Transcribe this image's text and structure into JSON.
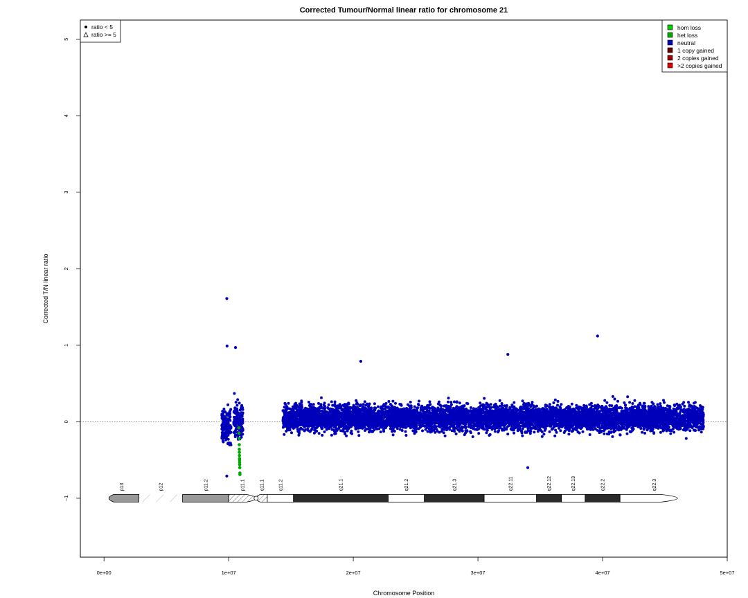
{
  "chart_data": {
    "type": "scatter",
    "title": "Corrected Tumour/Normal linear ratio for chromosome  21",
    "xlabel": "Chromosome Position",
    "ylabel": "Corrected T/N linear ratio",
    "xlim": [
      -1900000,
      50000000
    ],
    "ylim": [
      -1.77,
      5.25
    ],
    "x_ticks": [
      0,
      10000000,
      20000000,
      30000000,
      40000000,
      50000000
    ],
    "x_tick_labels": [
      "0e+00",
      "1e+07",
      "2e+07",
      "3e+07",
      "4e+07",
      "5e+07"
    ],
    "y_ticks": [
      -1,
      0,
      1,
      2,
      3,
      4,
      5
    ],
    "y_tick_labels": [
      "−1",
      "0",
      "1",
      "2",
      "3",
      "4",
      "5"
    ],
    "reference_line_y": 0,
    "shape_legend": {
      "placement": "top-left",
      "entries": [
        {
          "label": "ratio < 5",
          "symbol": "filled-circle"
        },
        {
          "label": "ratio >= 5",
          "symbol": "open-triangle"
        }
      ]
    },
    "legend": {
      "placement": "top-right",
      "entries": [
        {
          "label": "hom loss",
          "color": "#00cc00"
        },
        {
          "label": "het loss",
          "color": "#00aa00"
        },
        {
          "label": "neutral",
          "color": "#0000bb"
        },
        {
          "label": "1 copy gained",
          "color": "#660000"
        },
        {
          "label": "2 copies gained",
          "color": "#990000"
        },
        {
          "label": ">2 copies gained",
          "color": "#dd0000"
        }
      ]
    },
    "series": [
      {
        "name": "neutral",
        "color": "#0000bb",
        "marker": "filled-circle",
        "segments": [
          {
            "x_range": [
              9450000,
              10200000
            ],
            "y_mean": -0.05,
            "y_spread": 0.2
          },
          {
            "x_range": [
              10400000,
              11150000
            ],
            "y_mean": 0.0,
            "y_spread": 0.22
          },
          {
            "x_range": [
              14350000,
              48100000
            ],
            "y_mean": 0.05,
            "y_spread": 0.16
          }
        ],
        "outliers": [
          {
            "x": 9850000,
            "y": 1.61
          },
          {
            "x": 9870000,
            "y": 0.99
          },
          {
            "x": 10550000,
            "y": 0.97
          },
          {
            "x": 39600000,
            "y": 1.12
          },
          {
            "x": 32400000,
            "y": 0.88
          },
          {
            "x": 20600000,
            "y": 0.79
          },
          {
            "x": 9850000,
            "y": -0.71
          },
          {
            "x": 34000000,
            "y": -0.6
          }
        ]
      },
      {
        "name": "het loss",
        "color": "#00aa00",
        "marker": "filled-circle",
        "points": [
          {
            "x": 10820000,
            "y": -0.08
          },
          {
            "x": 10830000,
            "y": -0.15
          },
          {
            "x": 10840000,
            "y": -0.22
          },
          {
            "x": 10850000,
            "y": -0.3
          },
          {
            "x": 10855000,
            "y": -0.36
          },
          {
            "x": 10860000,
            "y": -0.4
          },
          {
            "x": 10865000,
            "y": -0.44
          },
          {
            "x": 10870000,
            "y": -0.48
          },
          {
            "x": 10875000,
            "y": -0.5
          },
          {
            "x": 10880000,
            "y": -0.53
          },
          {
            "x": 10885000,
            "y": -0.56
          },
          {
            "x": 10890000,
            "y": -0.6
          },
          {
            "x": 10900000,
            "y": -0.67
          },
          {
            "x": 10905000,
            "y": -0.69
          }
        ]
      }
    ],
    "ideogram": {
      "y": -1,
      "bands": [
        {
          "label": "p13",
          "start": 0,
          "end": 2800000,
          "stain": "gpos25"
        },
        {
          "label": "p12",
          "start": 2800000,
          "end": 6300000,
          "stain": "stalk"
        },
        {
          "label": "p11.2",
          "start": 6300000,
          "end": 10000000,
          "stain": "gpos50"
        },
        {
          "label": "p11.1",
          "start": 10000000,
          "end": 12200000,
          "stain": "acen"
        },
        {
          "label": "q11.1",
          "start": 12200000,
          "end": 13100000,
          "stain": "acen"
        },
        {
          "label": "q11.2",
          "start": 13100000,
          "end": 15200000,
          "stain": "gneg"
        },
        {
          "label": "q21.1",
          "start": 15200000,
          "end": 22800000,
          "stain": "gpos100"
        },
        {
          "label": "q21.2",
          "start": 22800000,
          "end": 25700000,
          "stain": "gneg"
        },
        {
          "label": "q21.3",
          "start": 25700000,
          "end": 30500000,
          "stain": "gpos100"
        },
        {
          "label": "q22.11",
          "start": 30500000,
          "end": 34700000,
          "stain": "gneg"
        },
        {
          "label": "q22.12",
          "start": 34700000,
          "end": 36700000,
          "stain": "gpos100"
        },
        {
          "label": "q22.13",
          "start": 36700000,
          "end": 38600000,
          "stain": "gneg"
        },
        {
          "label": "q22.2",
          "start": 38600000,
          "end": 41400000,
          "stain": "gpos100"
        },
        {
          "label": "q22.3",
          "start": 41400000,
          "end": 46900000,
          "stain": "gneg"
        }
      ]
    }
  }
}
